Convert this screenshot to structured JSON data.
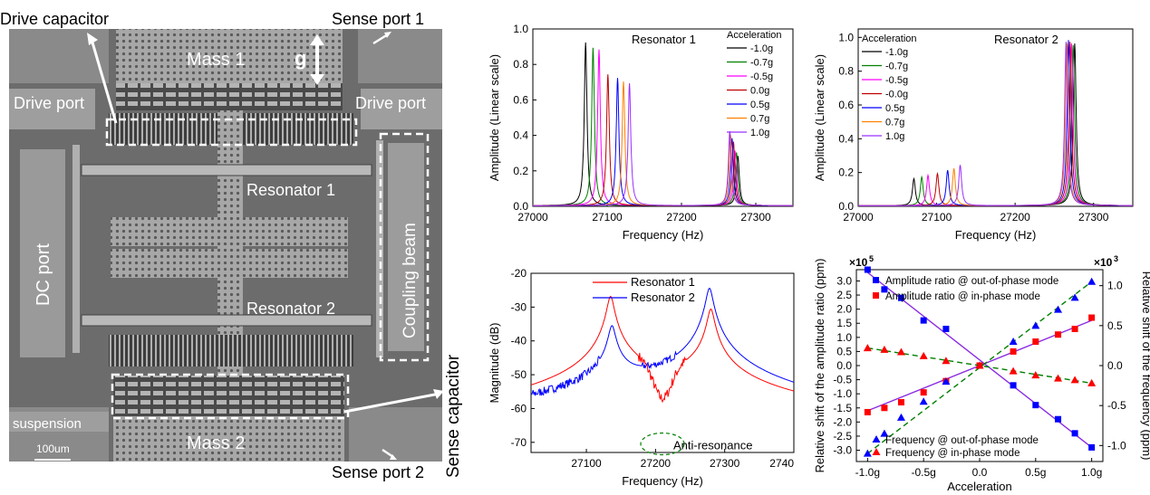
{
  "sem": {
    "labels": {
      "drive_capacitor": "Drive capacitor",
      "sense_port_1": "Sense port 1",
      "mass_1": "Mass 1",
      "g": "g",
      "drive_port_left": "Drive port",
      "drive_port_right": "Drive port",
      "resonator_1": "Resonator 1",
      "dc_port": "DC port",
      "coupling_beam": "Coupling beam",
      "resonator_2": "Resonator 2",
      "sense_capacitor": "Sense capacitor",
      "suspension": "suspension",
      "scale_bar": "100um",
      "mass_2": "Mass 2",
      "sense_port_2": "Sense port 2"
    },
    "colors": {
      "substrate": "#6b6b6b",
      "structure": "#a9a9a9",
      "dark": "#3c3c3c",
      "annotation": "#ffffff"
    }
  },
  "chart_data": [
    {
      "type": "line",
      "title": "Resonator 1",
      "xlabel": "Frequency (Hz)",
      "ylabel": "Amplitude (Linear scale)",
      "xlim": [
        27000,
        27350
      ],
      "ylim": [
        0,
        1.0
      ],
      "xticks": [
        "27000",
        "27100",
        "27200",
        "27300"
      ],
      "yticks": [
        "0.0",
        "0.2",
        "0.4",
        "0.6",
        "0.8",
        "1.0"
      ],
      "legend_title": "Acceleration",
      "legend_position": "top-right",
      "series": [
        {
          "name": "-1.0g",
          "color": "#000000",
          "peaks": [
            [
              27071,
              0.92
            ],
            [
              27276,
              0.28
            ]
          ]
        },
        {
          "name": "-0.7g",
          "color": "#008000",
          "peaks": [
            [
              27081,
              0.89
            ],
            [
              27274,
              0.3
            ]
          ]
        },
        {
          "name": "-0.5g",
          "color": "#ff00ff",
          "peaks": [
            [
              27089,
              0.88
            ],
            [
              27272,
              0.31
            ]
          ]
        },
        {
          "name": "0.0g",
          "color": "#c00000",
          "peaks": [
            [
              27101,
              0.74
            ],
            [
              27270,
              0.36
            ]
          ]
        },
        {
          "name": "0.5g",
          "color": "#0000ff",
          "peaks": [
            [
              27114,
              0.72
            ],
            [
              27268,
              0.38
            ]
          ]
        },
        {
          "name": "0.7g",
          "color": "#ff8000",
          "peaks": [
            [
              27122,
              0.7
            ],
            [
              27266,
              0.4
            ]
          ]
        },
        {
          "name": "1.0g",
          "color": "#9b30ff",
          "peaks": [
            [
              27130,
              0.69
            ],
            [
              27265,
              0.42
            ]
          ]
        }
      ]
    },
    {
      "type": "line",
      "title": "Resonator 2",
      "xlabel": "Frequency (Hz)",
      "ylabel": "Amplitude (Linear scale)",
      "xlim": [
        27000,
        27350
      ],
      "ylim": [
        0,
        1.05
      ],
      "xticks": [
        "27000",
        "27100",
        "27200",
        "27300"
      ],
      "yticks": [
        "0.0",
        "0.2",
        "0.4",
        "0.6",
        "0.8",
        "1.0"
      ],
      "legend_title": "Acceleration",
      "legend_position": "top-left",
      "series": [
        {
          "name": "-1.0g",
          "color": "#000000",
          "peaks": [
            [
              27071,
              0.16
            ],
            [
              27276,
              0.96
            ]
          ]
        },
        {
          "name": "-0.7g",
          "color": "#008000",
          "peaks": [
            [
              27081,
              0.17
            ],
            [
              27274,
              0.95
            ]
          ]
        },
        {
          "name": "-0.5g",
          "color": "#ff00ff",
          "peaks": [
            [
              27089,
              0.18
            ],
            [
              27272,
              0.96
            ]
          ]
        },
        {
          "name": "-0.0g",
          "color": "#c00000",
          "peaks": [
            [
              27101,
              0.19
            ],
            [
              27270,
              0.97
            ]
          ]
        },
        {
          "name": "0.5g",
          "color": "#0000ff",
          "peaks": [
            [
              27114,
              0.21
            ],
            [
              27268,
              0.98
            ]
          ]
        },
        {
          "name": "0.7g",
          "color": "#ff8000",
          "peaks": [
            [
              27122,
              0.22
            ],
            [
              27266,
              0.96
            ]
          ]
        },
        {
          "name": "1.0g",
          "color": "#9b30ff",
          "peaks": [
            [
              27130,
              0.24
            ],
            [
              27265,
              0.97
            ]
          ]
        }
      ]
    },
    {
      "type": "line",
      "title": "",
      "xlabel": "Frequency (Hz)",
      "ylabel": "Magnitude (dB)",
      "xlim": [
        27020,
        27400
      ],
      "ylim": [
        -73,
        -20
      ],
      "xticks": [
        "27100",
        "27200",
        "27300",
        "2740"
      ],
      "yticks": [
        "-70",
        "-60",
        "-50",
        "-40",
        "-30",
        "-20"
      ],
      "legend_position": "top-center",
      "annotation": "Anti-resonance",
      "series": [
        {
          "name": "Resonator 1",
          "color": "#ff0000",
          "peaks": [
            [
              27135,
              -27
            ],
            [
              27280,
              -31
            ]
          ],
          "antiresonance": [
            27210,
            -71
          ]
        },
        {
          "name": "Resonator 2",
          "color": "#0000ff",
          "peaks": [
            [
              27137,
              -36.5
            ],
            [
              27278,
              -24.5
            ]
          ]
        }
      ]
    },
    {
      "type": "scatter",
      "title": "",
      "xlabel": "Acceleration",
      "ylabel_left": "Relative shift of the amplitude ratio (ppm)",
      "ylabel_right": "Relative shift of the frequency (ppm)",
      "left_multiplier": "×10",
      "left_multiplier_exp": "5",
      "right_multiplier": "×10",
      "right_multiplier_exp": "3",
      "xlim": [
        -1.1,
        1.1
      ],
      "ylim_left": [
        -3.4,
        3.4
      ],
      "ylim_right": [
        -1.2,
        1.2
      ],
      "xticks": [
        "-1.0g",
        "-0.5g",
        "0.0",
        "0.5g",
        "1.0g"
      ],
      "yticks_left": [
        "3.0",
        "2.5",
        "2.0",
        "1.5",
        "1.0",
        "0.5",
        "0.0",
        "-0.5",
        "-1.0",
        "-1.5",
        "-2.0",
        "-2.5",
        "-3.0"
      ],
      "yticks_right": [
        "1.0",
        "0.5",
        "0.0",
        "-0.5",
        "-1.0"
      ],
      "legend_position": "top-inside",
      "x": [
        -1.0,
        -0.85,
        -0.7,
        -0.5,
        -0.3,
        0.0,
        0.3,
        0.5,
        0.7,
        0.85,
        1.0
      ],
      "series": [
        {
          "name": "Amplitude ratio @ out-of-phase mode",
          "color": "#0000ff",
          "marker": "square",
          "axis": "left",
          "values": [
            3.4,
            2.7,
            2.4,
            1.6,
            1.3,
            0.0,
            -0.7,
            -1.4,
            -1.9,
            -2.4,
            -2.9
          ],
          "fit": [
            3.3,
            -2.9
          ],
          "fit_color": "#8b2be2",
          "fit_style": "solid"
        },
        {
          "name": "Amplitude ratio @ in-phase mode",
          "color": "#ff0000",
          "marker": "square",
          "axis": "left",
          "values": [
            -1.65,
            -1.5,
            -1.3,
            -0.95,
            -0.55,
            0.0,
            0.5,
            0.85,
            1.1,
            1.3,
            1.7
          ],
          "fit": [
            -1.6,
            1.6
          ],
          "fit_color": "#8b2be2",
          "fit_style": "solid"
        },
        {
          "name": "Frequency @ out-of-phase mode",
          "color": "#0000ff",
          "marker": "triangle",
          "axis": "right",
          "values": [
            -1.1,
            -0.85,
            -0.65,
            -0.45,
            -0.2,
            0.0,
            0.3,
            0.5,
            0.7,
            0.85,
            1.05
          ],
          "fit": [
            -1.1,
            1.05
          ],
          "fit_color": "#008000",
          "fit_style": "dashed"
        },
        {
          "name": "Frequency @ in-phase mode",
          "color": "#ff0000",
          "marker": "triangle",
          "axis": "right",
          "values": [
            0.22,
            0.2,
            0.17,
            0.12,
            0.06,
            0.0,
            -0.07,
            -0.12,
            -0.16,
            -0.18,
            -0.22
          ],
          "fit": [
            0.22,
            -0.22
          ],
          "fit_color": "#008000",
          "fit_style": "dashed"
        }
      ]
    }
  ]
}
